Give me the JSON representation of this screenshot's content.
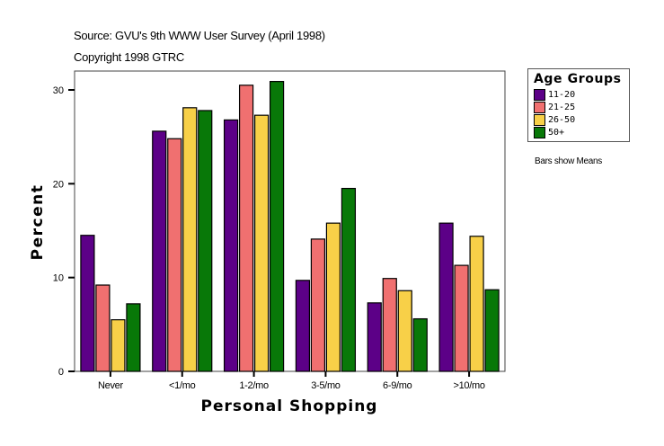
{
  "header": {
    "source": "Source: GVU's 9th WWW User Survey (April 1998)",
    "copyright": "Copyright 1998 GTRC"
  },
  "legend": {
    "title": "Age Groups",
    "items": [
      {
        "label": "11-20",
        "color": "#5c0087"
      },
      {
        "label": "21-25",
        "color": "#f07070"
      },
      {
        "label": "26-50",
        "color": "#f8d048"
      },
      {
        "label": "50+",
        "color": "#087808"
      }
    ]
  },
  "note": "Bars show Means",
  "chart_data": {
    "type": "bar",
    "title": "",
    "xlabel": "Personal Shopping",
    "ylabel": "Percent",
    "categories": [
      "Never",
      "<1/mo",
      "1-2/mo",
      "3-5/mo",
      "6-9/mo",
      ">10/mo"
    ],
    "series": [
      {
        "name": "11-20",
        "color": "#5c0087",
        "values": [
          14.5,
          25.6,
          26.8,
          9.7,
          7.3,
          15.8
        ]
      },
      {
        "name": "21-25",
        "color": "#f07070",
        "values": [
          9.2,
          24.8,
          30.5,
          14.1,
          9.9,
          11.3
        ]
      },
      {
        "name": "26-50",
        "color": "#f8d048",
        "values": [
          5.5,
          28.1,
          27.3,
          15.8,
          8.6,
          14.4
        ]
      },
      {
        "name": "50+",
        "color": "#087808",
        "values": [
          7.2,
          27.8,
          30.9,
          19.5,
          5.6,
          8.7
        ]
      }
    ],
    "yticks": [
      0,
      10,
      20,
      30
    ],
    "ylim": [
      0,
      32
    ],
    "grid": false,
    "legend_position": "right"
  }
}
